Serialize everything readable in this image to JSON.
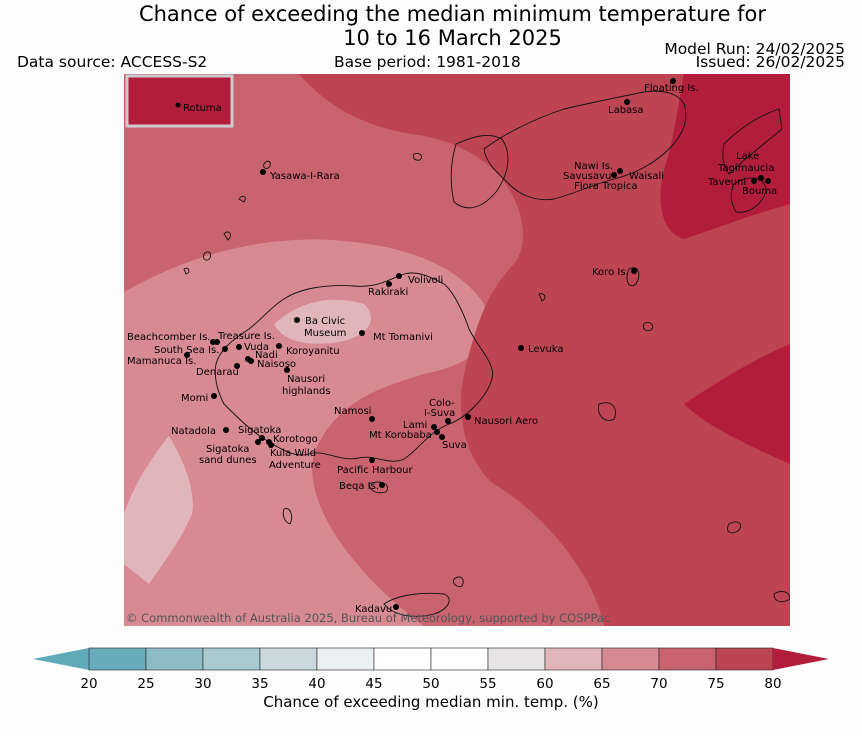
{
  "header": {
    "title_line1": "Chance of exceeding the median minimum temperature for",
    "title_line2": "10 to 16 March 2025",
    "data_source": "Data source: ACCESS-S2",
    "base_period": "Base period: 1981-2018",
    "model_run": "Model Run: 24/02/2025",
    "issued": "Issued: 26/02/2025"
  },
  "map": {
    "inset_label": "Rotuma",
    "credit": "© Commonwealth of Australia 2025, Bureau of Meteorology, supported by COSPPac",
    "places": [
      "Floating Is.",
      "Labasa",
      "Yasawa-I-Rara",
      "Nawi Is.",
      "Savusavu",
      "Waisali",
      "Flora Tropica",
      "Lake",
      "Tagimaucia",
      "Taveuni",
      "Bouma",
      "Volivoli",
      "Rakiraki",
      "Koro Is.",
      "Beachcomber Is.",
      "Treasure Is.",
      "Ba Civic",
      "Museum",
      "Mt Tomanivi",
      "South Sea Is.",
      "Vuda",
      "Koroyanitu",
      "Nadi",
      "Mamanuca Is.",
      "Naisoso",
      "Denarau",
      "Levuka",
      "Nausori",
      "highlands",
      "Momi",
      "Colo-",
      "I-Suva",
      "Namosi",
      "Nausori Aero",
      "Lami",
      "Natadola",
      "Sigatoka",
      "Mt Korobaba",
      "Korotogo",
      "Suva",
      "Sigatoka",
      "sand dunes",
      "Kula Wild",
      "Adventure",
      "Pacific Harbour",
      "Beqa Is.",
      "Kadavu"
    ]
  },
  "colorbar": {
    "title": "Chance of exceeding median min. temp. (%)",
    "ticks": [
      "20",
      "25",
      "30",
      "35",
      "40",
      "45",
      "50",
      "55",
      "60",
      "65",
      "70",
      "75",
      "80"
    ],
    "colors": [
      "#5fa9b8",
      "#66acba",
      "#8ebcc6",
      "#a9cad0",
      "#c8d8dc",
      "#eaf0f2",
      "#ffffff",
      "#ffffff",
      "#e6e4e4",
      "#e1b6bb",
      "#d88a92",
      "#c9636f",
      "#bc4453",
      "#b21d3b"
    ]
  }
}
